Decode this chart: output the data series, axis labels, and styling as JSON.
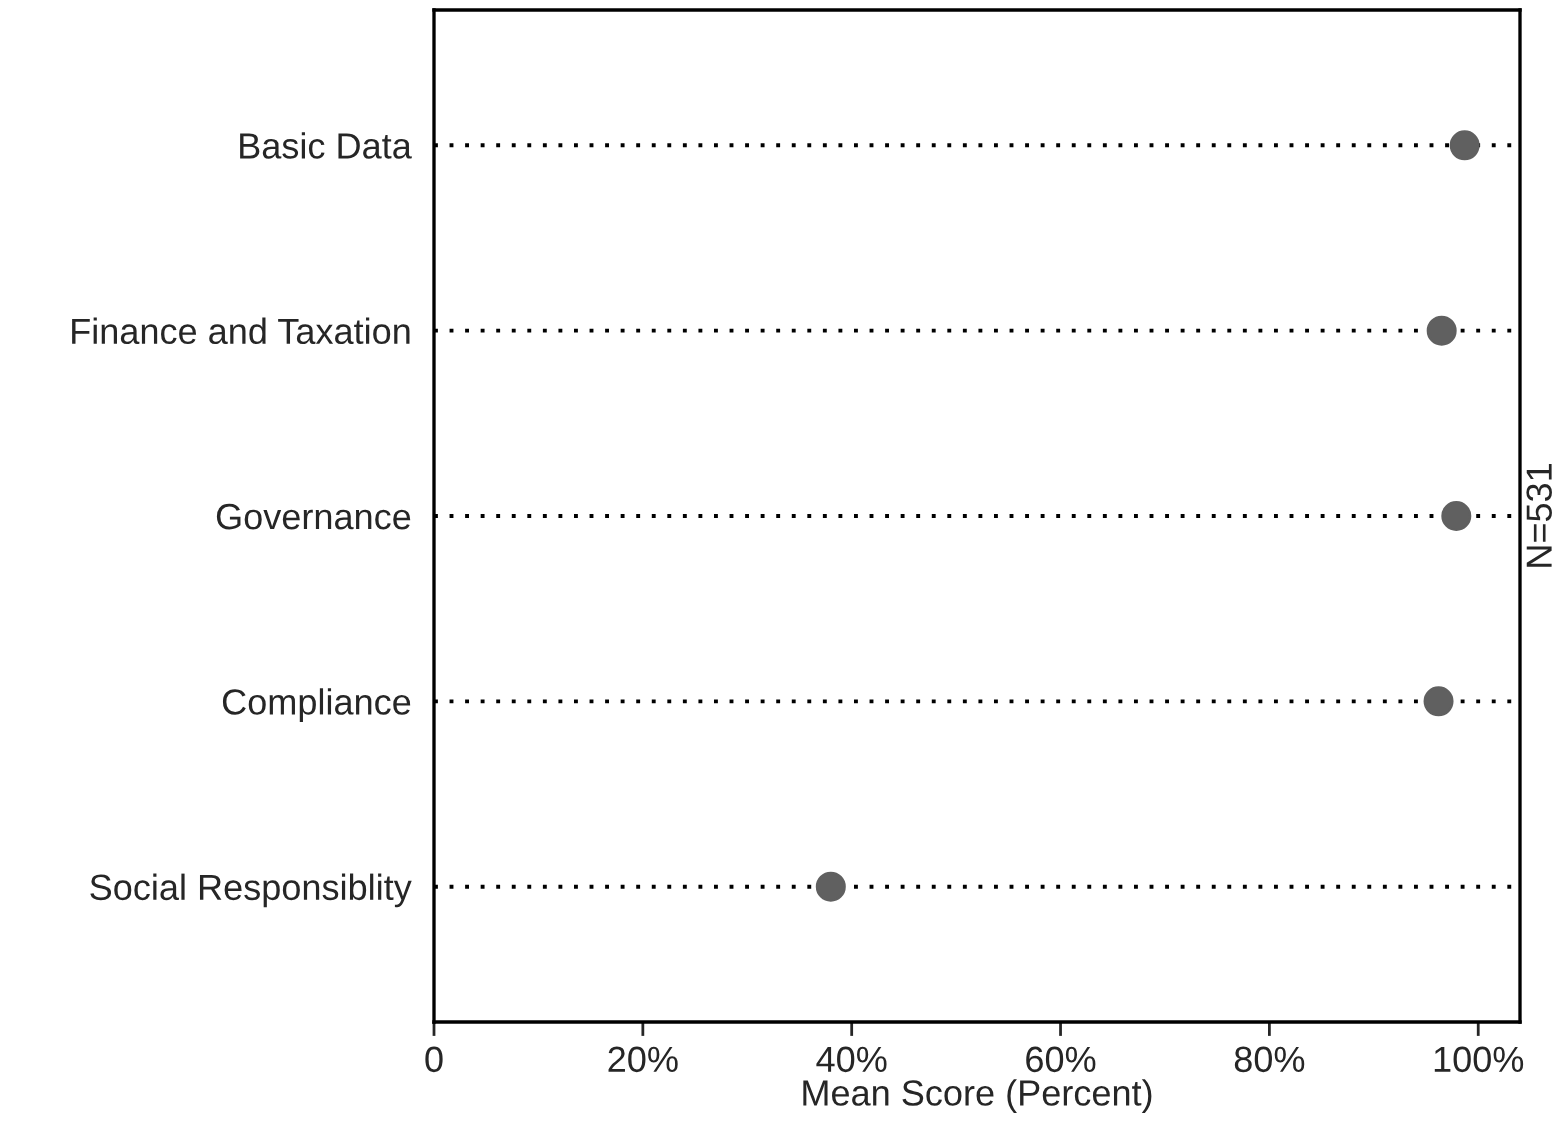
{
  "chart_data": {
    "type": "scatter",
    "orientation": "horizontal",
    "categories": [
      "Basic Data",
      "Finance and Taxation",
      "Governance",
      "Compliance",
      "Social Responsiblity"
    ],
    "series": [
      {
        "color": "#606060",
        "values": [
          98.7,
          96.5,
          97.9,
          96.2,
          38.0
        ]
      }
    ],
    "xlabel": "Mean Score (Percent)",
    "xlim": [
      0,
      104
    ],
    "xticks": [
      0,
      {
        "value": 20,
        "label": "20%"
      },
      {
        "value": 40,
        "label": "40%"
      },
      {
        "value": 60,
        "label": "60%"
      },
      {
        "value": 80,
        "label": "80%"
      },
      {
        "value": 100,
        "label": "100%"
      }
    ],
    "grid": "y",
    "marker": "circle",
    "annotations": [
      "N=531"
    ]
  }
}
